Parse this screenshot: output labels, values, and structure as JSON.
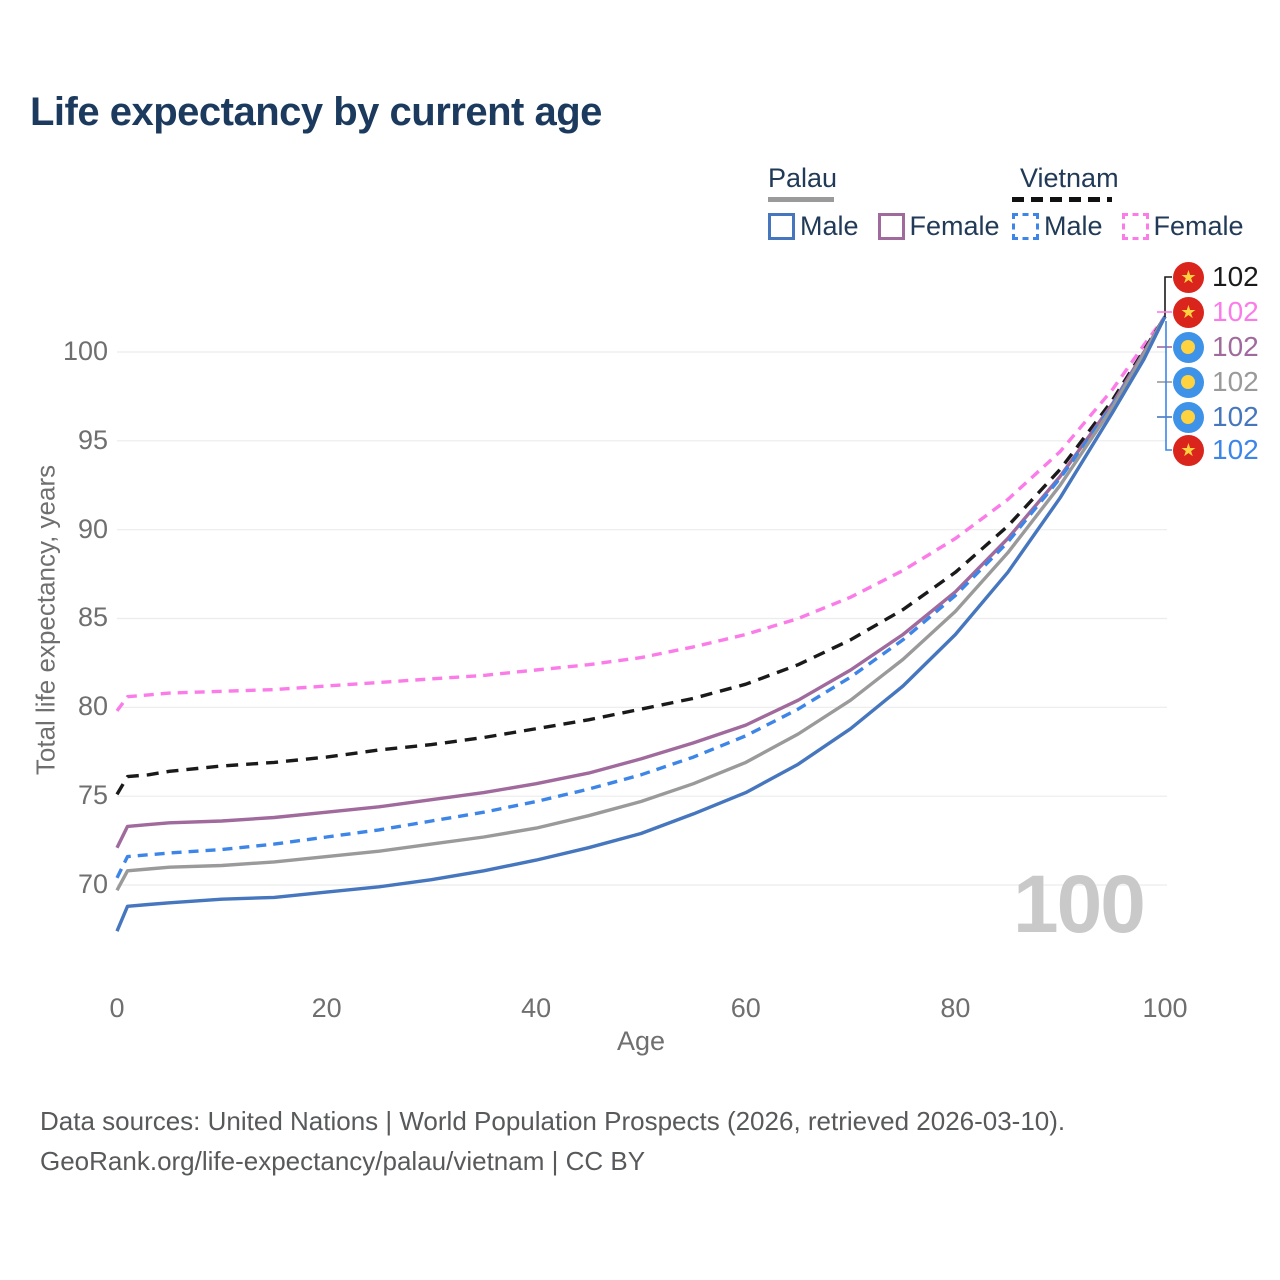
{
  "title": "Life expectancy by current age",
  "legend": {
    "groups": [
      {
        "country": "Palau",
        "line_style": "solid",
        "items": [
          {
            "label": "Male",
            "color": "#4576be"
          },
          {
            "label": "Female",
            "color": "#a06a9d"
          }
        ]
      },
      {
        "country": "Vietnam",
        "line_style": "dashed",
        "items": [
          {
            "label": "Male",
            "color": "#3d86e8"
          },
          {
            "label": "Female",
            "color": "#fb7ce8"
          }
        ]
      }
    ]
  },
  "age_indicator": "100",
  "end_labels": [
    {
      "series": "Vietnam total",
      "flag": "vietnam",
      "value": "102",
      "color": "#1a1a1a"
    },
    {
      "series": "Vietnam Female",
      "flag": "vietnam",
      "value": "102",
      "color": "#fb7ce8"
    },
    {
      "series": "Palau Female",
      "flag": "palau",
      "value": "102",
      "color": "#a06a9d"
    },
    {
      "series": "Palau total",
      "flag": "palau",
      "value": "102",
      "color": "#9a9a9a"
    },
    {
      "series": "Palau Male",
      "flag": "palau",
      "value": "102",
      "color": "#4576be"
    },
    {
      "series": "Vietnam Male",
      "flag": "vietnam",
      "value": "102",
      "color": "#3d86e8"
    }
  ],
  "footer": {
    "line1": "Data sources: United Nations | World Population Prospects (2026, retrieved 2026-03-10).",
    "line2": "GeoRank.org/life-expectancy/palau/vietnam | CC BY"
  },
  "chart_data": {
    "type": "line",
    "title": "Life expectancy by current age",
    "xlabel": "Age",
    "ylabel": "Total life expectancy, years",
    "xlim": [
      0,
      100
    ],
    "ylim": [
      66,
      103
    ],
    "x_ticks": [
      0,
      20,
      40,
      60,
      80,
      100
    ],
    "y_ticks": [
      70,
      75,
      80,
      85,
      90,
      95,
      100
    ],
    "grid": "horizontal",
    "legend_position": "top-right",
    "x": [
      0,
      1,
      3,
      5,
      10,
      15,
      20,
      25,
      30,
      35,
      40,
      45,
      50,
      55,
      60,
      65,
      70,
      75,
      80,
      85,
      90,
      95,
      98,
      100
    ],
    "series": [
      {
        "id": "vietnam-female",
        "name": "Vietnam Female",
        "color": "#fb7ce8",
        "dash": "dashed",
        "dash_pattern": "10 7",
        "values": [
          79.8,
          80.6,
          80.7,
          80.8,
          80.9,
          81.0,
          81.2,
          81.4,
          81.6,
          81.8,
          82.1,
          82.4,
          82.8,
          83.4,
          84.1,
          85.0,
          86.2,
          87.7,
          89.5,
          91.7,
          94.4,
          97.9,
          100.4,
          102
        ]
      },
      {
        "id": "vietnam-total",
        "name": "Vietnam (both sexes)",
        "color": "#1a1a1a",
        "dash": "dashed",
        "dash_pattern": "12 8",
        "values": [
          75.1,
          76.1,
          76.2,
          76.4,
          76.7,
          76.9,
          77.2,
          77.6,
          77.9,
          78.3,
          78.8,
          79.3,
          79.9,
          80.5,
          81.3,
          82.4,
          83.8,
          85.5,
          87.6,
          90.2,
          93.4,
          97.3,
          100.1,
          102
        ]
      },
      {
        "id": "palau-female",
        "name": "Palau Female",
        "color": "#a06a9d",
        "dash": "solid",
        "dash_pattern": "",
        "values": [
          72.1,
          73.3,
          73.4,
          73.5,
          73.6,
          73.8,
          74.1,
          74.4,
          74.8,
          75.2,
          75.7,
          76.3,
          77.1,
          78.0,
          79.0,
          80.4,
          82.1,
          84.1,
          86.5,
          89.5,
          93.0,
          97.1,
          100.0,
          102
        ]
      },
      {
        "id": "vietnam-male",
        "name": "Vietnam Male",
        "color": "#3d86e8",
        "dash": "dashed",
        "dash_pattern": "10 7",
        "values": [
          70.4,
          71.6,
          71.7,
          71.8,
          72.0,
          72.3,
          72.7,
          73.1,
          73.6,
          74.1,
          74.7,
          75.4,
          76.2,
          77.2,
          78.4,
          79.9,
          81.7,
          83.8,
          86.3,
          89.3,
          92.9,
          97.0,
          99.9,
          102
        ]
      },
      {
        "id": "palau-total",
        "name": "Palau (both sexes)",
        "color": "#9a9a9a",
        "dash": "solid",
        "dash_pattern": "",
        "values": [
          69.7,
          70.8,
          70.9,
          71.0,
          71.1,
          71.3,
          71.6,
          71.9,
          72.3,
          72.7,
          73.2,
          73.9,
          74.7,
          75.7,
          76.9,
          78.5,
          80.4,
          82.7,
          85.4,
          88.7,
          92.5,
          96.9,
          99.9,
          102
        ]
      },
      {
        "id": "palau-male",
        "name": "Palau Male",
        "color": "#4576be",
        "dash": "solid",
        "dash_pattern": "",
        "values": [
          67.4,
          68.8,
          68.9,
          69.0,
          69.2,
          69.3,
          69.6,
          69.9,
          70.3,
          70.8,
          71.4,
          72.1,
          72.9,
          74.0,
          75.2,
          76.8,
          78.8,
          81.2,
          84.1,
          87.6,
          91.8,
          96.6,
          99.6,
          102
        ]
      }
    ]
  }
}
